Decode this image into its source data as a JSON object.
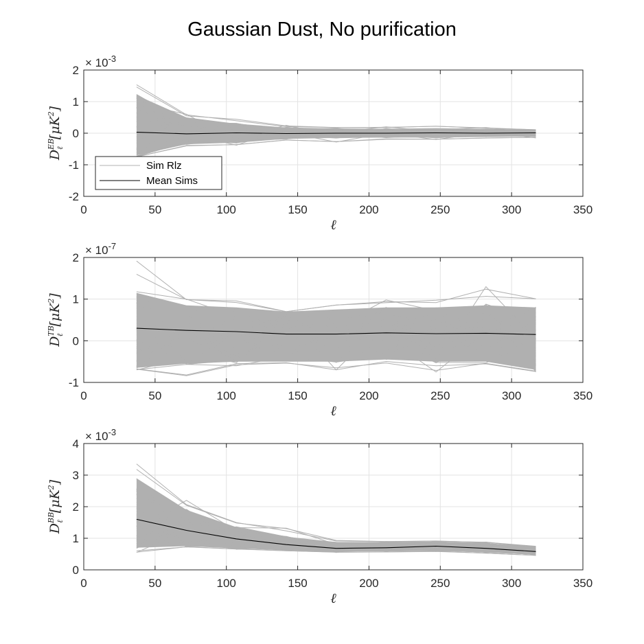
{
  "title": "Gaussian Dust, No purification",
  "chart_data": [
    {
      "type": "line",
      "title": "",
      "xlabel": "ℓ",
      "ylabel": {
        "base": "D",
        "sub": "ℓ",
        "sup": "EB",
        "unit": "[μK",
        "unit_sup": "2",
        "unit_close": "]"
      },
      "xlim": [
        0,
        350
      ],
      "ylim": [
        -2,
        2
      ],
      "exponent_label": {
        "base": "× 10",
        "exp": "-3"
      },
      "xticks": [
        "0",
        "50",
        "100",
        "150",
        "200",
        "250",
        "300",
        "350"
      ],
      "yticks": [
        "-2",
        "-1",
        "0",
        "1",
        "2"
      ],
      "grid": true,
      "legend": {
        "placement": "bottom-left",
        "entries": [
          "Sim Rlz",
          "Mean Sims"
        ]
      },
      "x": [
        37,
        72,
        107,
        142,
        177,
        212,
        247,
        282,
        317
      ],
      "series": [
        {
          "name": "Sim Rlz",
          "color": "#b0b0b0",
          "band_upper": [
            1.2,
            0.5,
            0.3,
            0.18,
            0.15,
            0.14,
            0.16,
            0.13,
            0.1
          ],
          "band_lower": [
            -0.7,
            -0.35,
            -0.3,
            -0.18,
            -0.15,
            -0.14,
            -0.14,
            -0.12,
            -0.1
          ],
          "max": [
            1.75,
            0.6,
            0.45,
            0.25,
            0.2,
            0.2,
            0.23,
            0.18,
            0.12
          ],
          "min": [
            -0.8,
            -0.42,
            -0.38,
            -0.25,
            -0.28,
            -0.2,
            -0.2,
            -0.16,
            -0.15
          ]
        },
        {
          "name": "Mean Sims",
          "color": "#000000",
          "values": [
            0.03,
            -0.02,
            0.01,
            -0.01,
            0.0,
            0.0,
            0.01,
            0.0,
            0.01
          ]
        }
      ]
    },
    {
      "type": "line",
      "title": "",
      "xlabel": "ℓ",
      "ylabel": {
        "base": "D",
        "sub": "ℓ",
        "sup": "TB",
        "unit": "[μK",
        "unit_sup": "2",
        "unit_close": "]"
      },
      "xlim": [
        0,
        350
      ],
      "ylim": [
        -1,
        2
      ],
      "exponent_label": {
        "base": "× 10",
        "exp": "-7"
      },
      "xticks": [
        "0",
        "50",
        "100",
        "150",
        "200",
        "250",
        "300",
        "350"
      ],
      "yticks": [
        "-1",
        "0",
        "1",
        "2"
      ],
      "grid": true,
      "x": [
        37,
        72,
        107,
        142,
        177,
        212,
        247,
        282,
        317
      ],
      "series": [
        {
          "name": "Sim Rlz",
          "color": "#b0b0b0",
          "band_upper": [
            1.15,
            0.85,
            0.8,
            0.7,
            0.75,
            0.8,
            0.8,
            0.85,
            0.8
          ],
          "band_lower": [
            -0.65,
            -0.55,
            -0.5,
            -0.5,
            -0.5,
            -0.45,
            -0.5,
            -0.5,
            -0.7
          ],
          "max": [
            2.0,
            1.0,
            0.98,
            0.7,
            0.98,
            0.98,
            1.0,
            1.3,
            1.05
          ],
          "min": [
            -0.7,
            -1.0,
            -0.6,
            -0.55,
            -0.7,
            -0.55,
            -0.75,
            -0.6,
            -0.75
          ]
        },
        {
          "name": "Mean Sims",
          "color": "#000000",
          "values": [
            0.3,
            0.25,
            0.22,
            0.16,
            0.16,
            0.19,
            0.17,
            0.18,
            0.15
          ]
        }
      ]
    },
    {
      "type": "line",
      "title": "",
      "xlabel": "ℓ",
      "ylabel": {
        "base": "D",
        "sub": "ℓ",
        "sup": "BB",
        "unit": "[μK",
        "unit_sup": "2",
        "unit_close": "]"
      },
      "xlim": [
        0,
        350
      ],
      "ylim": [
        0,
        4
      ],
      "exponent_label": {
        "base": "× 10",
        "exp": "-3"
      },
      "xticks": [
        "0",
        "50",
        "100",
        "150",
        "200",
        "250",
        "300",
        "350"
      ],
      "yticks": [
        "0",
        "1",
        "2",
        "3",
        "4"
      ],
      "grid": true,
      "x": [
        37,
        72,
        107,
        142,
        177,
        212,
        247,
        282,
        317
      ],
      "series": [
        {
          "name": "Sim Rlz",
          "color": "#b0b0b0",
          "band_upper": [
            2.9,
            1.9,
            1.35,
            1.05,
            0.88,
            0.88,
            0.9,
            0.85,
            0.72
          ],
          "band_lower": [
            0.7,
            0.75,
            0.68,
            0.62,
            0.58,
            0.58,
            0.6,
            0.55,
            0.48
          ],
          "max": [
            3.45,
            2.2,
            1.55,
            1.32,
            0.95,
            0.9,
            0.92,
            0.88,
            0.75
          ],
          "min": [
            0.55,
            0.72,
            0.65,
            0.6,
            0.55,
            0.55,
            0.58,
            0.52,
            0.45
          ]
        },
        {
          "name": "Mean Sims",
          "color": "#000000",
          "values": [
            1.6,
            1.25,
            0.98,
            0.8,
            0.68,
            0.7,
            0.75,
            0.68,
            0.58
          ]
        }
      ]
    }
  ]
}
